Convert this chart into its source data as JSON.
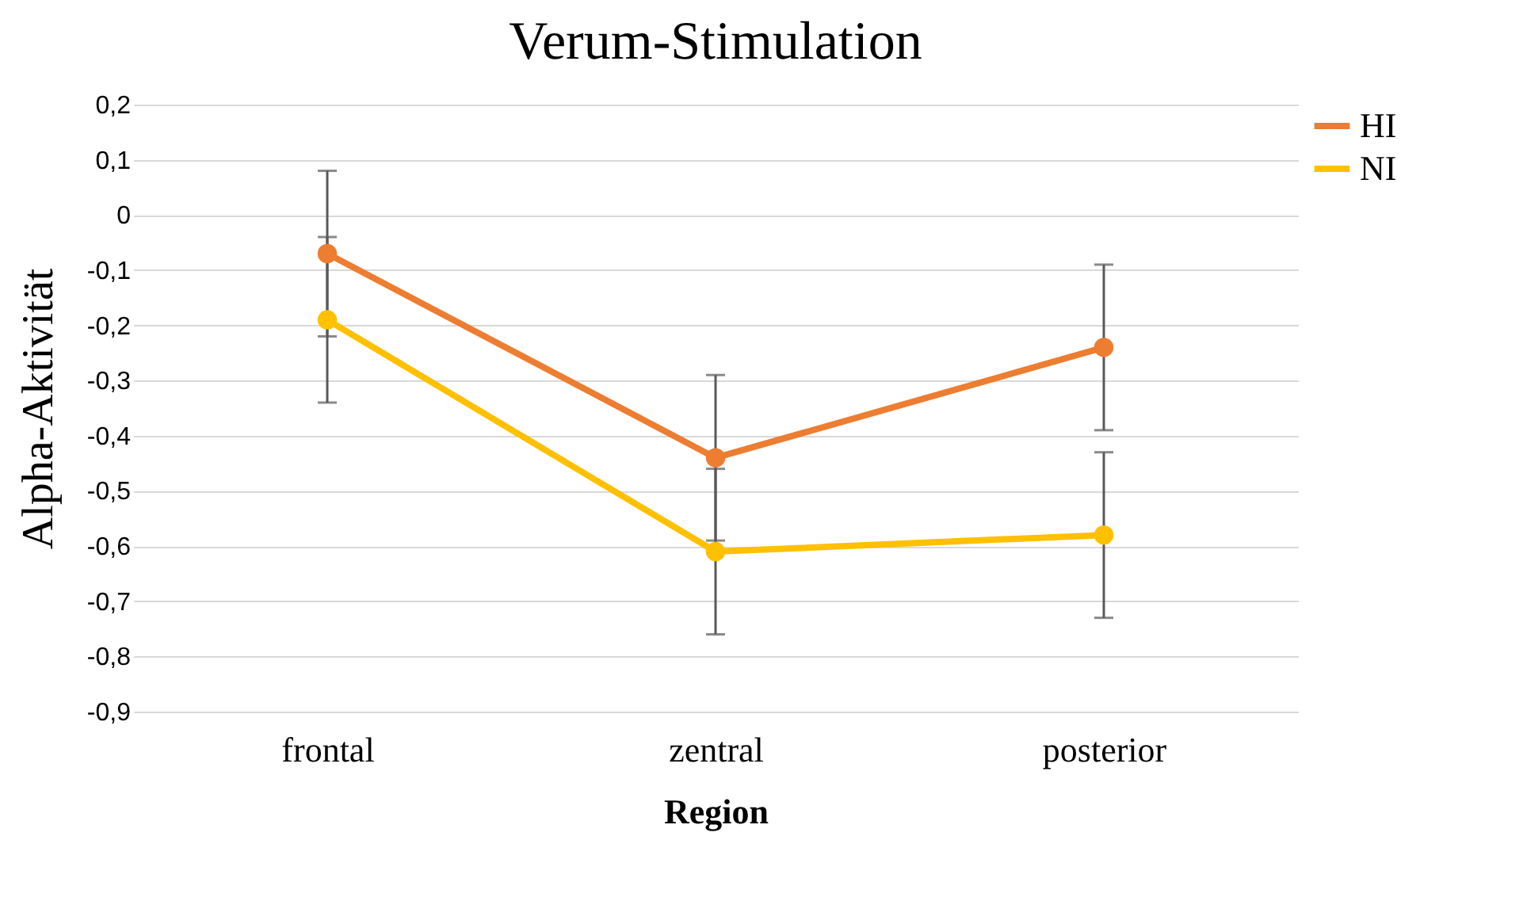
{
  "chart_data": {
    "type": "line",
    "title": "Verum-Stimulation",
    "xlabel": "Region",
    "ylabel": "Alpha-Aktivität",
    "categories": [
      "frontal",
      "zentral",
      "posterior"
    ],
    "series": [
      {
        "name": "HI",
        "color": "#ed7d31",
        "values": [
          -0.07,
          -0.44,
          -0.24
        ],
        "errors": [
          0.15,
          0.15,
          0.15
        ]
      },
      {
        "name": "NI",
        "color": "#ffc000",
        "values": [
          -0.19,
          -0.61,
          -0.58
        ],
        "errors": [
          0.15,
          0.15,
          0.15
        ]
      }
    ],
    "ylim": [
      -0.9,
      0.2
    ],
    "yticks": [
      {
        "value": -0.9,
        "label": "-0,9"
      },
      {
        "value": -0.8,
        "label": "-0,8"
      },
      {
        "value": -0.7,
        "label": "-0,7"
      },
      {
        "value": -0.6,
        "label": "-0,6"
      },
      {
        "value": -0.5,
        "label": "-0,5"
      },
      {
        "value": -0.4,
        "label": "-0,4"
      },
      {
        "value": -0.3,
        "label": "-0,3"
      },
      {
        "value": -0.2,
        "label": "-0,2"
      },
      {
        "value": -0.1,
        "label": "-0,1"
      },
      {
        "value": 0,
        "label": "0"
      },
      {
        "value": 0.1,
        "label": "0,1"
      },
      {
        "value": 0.2,
        "label": "0,2"
      }
    ],
    "grid": "y",
    "legend": "right",
    "marker": "circle",
    "line_style": "solid"
  }
}
